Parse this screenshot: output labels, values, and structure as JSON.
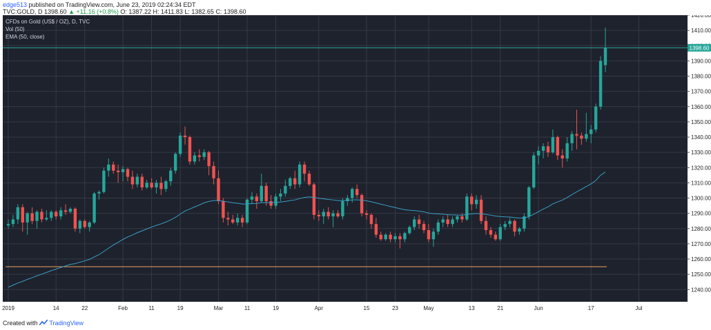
{
  "header": {
    "author": "edge513",
    "published": " published on TradingView.com, June 23, 2019 02:24:34 EDT",
    "symbol": "TVC:GOLD, D",
    "last": "1398.60",
    "change": "+11.16 (+0.8%)",
    "ohlc_o": "O: 1387.22",
    "ohlc_h": "H: 1411.83",
    "ohlc_l": "L: 1382.65",
    "ohlc_c": "C: 1398.60",
    "change_arrow": "▲"
  },
  "legend": {
    "title": "CFDs on Gold (US$ / OZ), D, TVC",
    "vol": "Vol (50)",
    "ema": "EMA (50, close)"
  },
  "footer": {
    "created_with": "Created with",
    "brand": "TradingView"
  },
  "colors": {
    "background": "#1e222d",
    "grid": "#363a45",
    "up": "#26a69a",
    "down": "#ef5350",
    "ema": "#3a9ec4",
    "hline_level": "#f0a35e",
    "last_line": "#26a69a",
    "axis_bg": "#ffffff"
  },
  "chart_data": {
    "type": "candlestick",
    "symbol": "CFDs on Gold (US$ / OZ), D, TVC",
    "ylim": [
      1232,
      1420
    ],
    "y_ticks": [
      1240,
      1250,
      1260,
      1270,
      1280,
      1290,
      1300,
      1310,
      1320,
      1330,
      1340,
      1350,
      1360,
      1370,
      1380,
      1390,
      1400,
      1410,
      1420
    ],
    "x_ticks": [
      {
        "label": "2019",
        "i": 0
      },
      {
        "label": "14",
        "i": 10
      },
      {
        "label": "22",
        "i": 16
      },
      {
        "label": "Feb",
        "i": 24
      },
      {
        "label": "11",
        "i": 30
      },
      {
        "label": "19",
        "i": 36
      },
      {
        "label": "Mar",
        "i": 44
      },
      {
        "label": "11",
        "i": 50
      },
      {
        "label": "19",
        "i": 56
      },
      {
        "label": "Apr",
        "i": 65
      },
      {
        "label": "15",
        "i": 75
      },
      {
        "label": "23",
        "i": 81
      },
      {
        "label": "May",
        "i": 88
      },
      {
        "label": "13",
        "i": 97
      },
      {
        "label": "21",
        "i": 103
      },
      {
        "label": "Jun",
        "i": 111
      },
      {
        "label": "17",
        "i": 122
      },
      {
        "label": "Jul",
        "i": 132
      }
    ],
    "last_price": 1398.6,
    "horizontal_level": 1255,
    "candles": [
      {
        "o": 1282,
        "h": 1286,
        "l": 1280,
        "c": 1283
      },
      {
        "o": 1283,
        "h": 1289,
        "l": 1281,
        "c": 1286
      },
      {
        "o": 1286,
        "h": 1296,
        "l": 1283,
        "c": 1294
      },
      {
        "o": 1294,
        "h": 1296,
        "l": 1278,
        "c": 1284
      },
      {
        "o": 1284,
        "h": 1291,
        "l": 1276,
        "c": 1290
      },
      {
        "o": 1290,
        "h": 1294,
        "l": 1283,
        "c": 1285
      },
      {
        "o": 1285,
        "h": 1292,
        "l": 1280,
        "c": 1291
      },
      {
        "o": 1291,
        "h": 1293,
        "l": 1284,
        "c": 1286
      },
      {
        "o": 1286,
        "h": 1292,
        "l": 1285,
        "c": 1287
      },
      {
        "o": 1287,
        "h": 1292,
        "l": 1285,
        "c": 1291
      },
      {
        "o": 1291,
        "h": 1292,
        "l": 1286,
        "c": 1288
      },
      {
        "o": 1288,
        "h": 1294,
        "l": 1286,
        "c": 1292
      },
      {
        "o": 1292,
        "h": 1296,
        "l": 1289,
        "c": 1291
      },
      {
        "o": 1291,
        "h": 1294,
        "l": 1290,
        "c": 1293
      },
      {
        "o": 1293,
        "h": 1294,
        "l": 1278,
        "c": 1280
      },
      {
        "o": 1280,
        "h": 1286,
        "l": 1277,
        "c": 1285
      },
      {
        "o": 1285,
        "h": 1286,
        "l": 1280,
        "c": 1281
      },
      {
        "o": 1281,
        "h": 1285,
        "l": 1278,
        "c": 1284
      },
      {
        "o": 1284,
        "h": 1304,
        "l": 1283,
        "c": 1303
      },
      {
        "o": 1303,
        "h": 1305,
        "l": 1299,
        "c": 1304
      },
      {
        "o": 1304,
        "h": 1320,
        "l": 1303,
        "c": 1318
      },
      {
        "o": 1318,
        "h": 1326,
        "l": 1314,
        "c": 1322
      },
      {
        "o": 1322,
        "h": 1324,
        "l": 1316,
        "c": 1318
      },
      {
        "o": 1318,
        "h": 1322,
        "l": 1310,
        "c": 1317
      },
      {
        "o": 1317,
        "h": 1321,
        "l": 1311,
        "c": 1319
      },
      {
        "o": 1319,
        "h": 1320,
        "l": 1311,
        "c": 1314
      },
      {
        "o": 1314,
        "h": 1318,
        "l": 1306,
        "c": 1309
      },
      {
        "o": 1309,
        "h": 1316,
        "l": 1307,
        "c": 1314
      },
      {
        "o": 1314,
        "h": 1316,
        "l": 1305,
        "c": 1307
      },
      {
        "o": 1307,
        "h": 1312,
        "l": 1306,
        "c": 1310
      },
      {
        "o": 1310,
        "h": 1313,
        "l": 1306,
        "c": 1307
      },
      {
        "o": 1307,
        "h": 1312,
        "l": 1303,
        "c": 1310
      },
      {
        "o": 1310,
        "h": 1314,
        "l": 1302,
        "c": 1306
      },
      {
        "o": 1306,
        "h": 1312,
        "l": 1304,
        "c": 1311
      },
      {
        "o": 1311,
        "h": 1320,
        "l": 1308,
        "c": 1318
      },
      {
        "o": 1318,
        "h": 1330,
        "l": 1316,
        "c": 1329
      },
      {
        "o": 1329,
        "h": 1343,
        "l": 1327,
        "c": 1341
      },
      {
        "o": 1341,
        "h": 1347,
        "l": 1335,
        "c": 1340
      },
      {
        "o": 1340,
        "h": 1341,
        "l": 1322,
        "c": 1324
      },
      {
        "o": 1324,
        "h": 1330,
        "l": 1322,
        "c": 1328
      },
      {
        "o": 1328,
        "h": 1332,
        "l": 1324,
        "c": 1327
      },
      {
        "o": 1327,
        "h": 1332,
        "l": 1325,
        "c": 1330
      },
      {
        "o": 1330,
        "h": 1331,
        "l": 1315,
        "c": 1321
      },
      {
        "o": 1321,
        "h": 1324,
        "l": 1309,
        "c": 1313
      },
      {
        "o": 1313,
        "h": 1318,
        "l": 1296,
        "c": 1298
      },
      {
        "o": 1298,
        "h": 1300,
        "l": 1284,
        "c": 1287
      },
      {
        "o": 1287,
        "h": 1291,
        "l": 1282,
        "c": 1286
      },
      {
        "o": 1286,
        "h": 1289,
        "l": 1283,
        "c": 1284
      },
      {
        "o": 1284,
        "h": 1290,
        "l": 1282,
        "c": 1287
      },
      {
        "o": 1287,
        "h": 1289,
        "l": 1281,
        "c": 1284
      },
      {
        "o": 1284,
        "h": 1300,
        "l": 1283,
        "c": 1299
      },
      {
        "o": 1299,
        "h": 1304,
        "l": 1296,
        "c": 1301
      },
      {
        "o": 1301,
        "h": 1303,
        "l": 1293,
        "c": 1298
      },
      {
        "o": 1298,
        "h": 1316,
        "l": 1297,
        "c": 1308
      },
      {
        "o": 1308,
        "h": 1310,
        "l": 1295,
        "c": 1298
      },
      {
        "o": 1298,
        "h": 1302,
        "l": 1293,
        "c": 1295
      },
      {
        "o": 1295,
        "h": 1303,
        "l": 1293,
        "c": 1301
      },
      {
        "o": 1301,
        "h": 1306,
        "l": 1298,
        "c": 1303
      },
      {
        "o": 1303,
        "h": 1312,
        "l": 1301,
        "c": 1308
      },
      {
        "o": 1308,
        "h": 1314,
        "l": 1306,
        "c": 1313
      },
      {
        "o": 1313,
        "h": 1318,
        "l": 1306,
        "c": 1309
      },
      {
        "o": 1309,
        "h": 1324,
        "l": 1307,
        "c": 1322
      },
      {
        "o": 1322,
        "h": 1324,
        "l": 1311,
        "c": 1316
      },
      {
        "o": 1316,
        "h": 1318,
        "l": 1308,
        "c": 1309
      },
      {
        "o": 1309,
        "h": 1310,
        "l": 1286,
        "c": 1289
      },
      {
        "o": 1289,
        "h": 1292,
        "l": 1285,
        "c": 1288
      },
      {
        "o": 1288,
        "h": 1293,
        "l": 1283,
        "c": 1291
      },
      {
        "o": 1291,
        "h": 1294,
        "l": 1286,
        "c": 1288
      },
      {
        "o": 1288,
        "h": 1292,
        "l": 1281,
        "c": 1290
      },
      {
        "o": 1290,
        "h": 1292,
        "l": 1287,
        "c": 1288
      },
      {
        "o": 1288,
        "h": 1300,
        "l": 1286,
        "c": 1298
      },
      {
        "o": 1298,
        "h": 1302,
        "l": 1295,
        "c": 1300
      },
      {
        "o": 1300,
        "h": 1307,
        "l": 1297,
        "c": 1306
      },
      {
        "o": 1306,
        "h": 1309,
        "l": 1300,
        "c": 1302
      },
      {
        "o": 1302,
        "h": 1303,
        "l": 1288,
        "c": 1290
      },
      {
        "o": 1290,
        "h": 1292,
        "l": 1286,
        "c": 1289
      },
      {
        "o": 1289,
        "h": 1290,
        "l": 1280,
        "c": 1283
      },
      {
        "o": 1283,
        "h": 1287,
        "l": 1274,
        "c": 1276
      },
      {
        "o": 1276,
        "h": 1278,
        "l": 1272,
        "c": 1273
      },
      {
        "o": 1273,
        "h": 1277,
        "l": 1272,
        "c": 1276
      },
      {
        "o": 1276,
        "h": 1278,
        "l": 1271,
        "c": 1273
      },
      {
        "o": 1273,
        "h": 1277,
        "l": 1271,
        "c": 1275
      },
      {
        "o": 1275,
        "h": 1277,
        "l": 1267,
        "c": 1273
      },
      {
        "o": 1273,
        "h": 1278,
        "l": 1271,
        "c": 1277
      },
      {
        "o": 1277,
        "h": 1282,
        "l": 1276,
        "c": 1281
      },
      {
        "o": 1281,
        "h": 1288,
        "l": 1279,
        "c": 1286
      },
      {
        "o": 1286,
        "h": 1289,
        "l": 1280,
        "c": 1283
      },
      {
        "o": 1283,
        "h": 1285,
        "l": 1277,
        "c": 1279
      },
      {
        "o": 1279,
        "h": 1283,
        "l": 1271,
        "c": 1273
      },
      {
        "o": 1273,
        "h": 1280,
        "l": 1268,
        "c": 1278
      },
      {
        "o": 1278,
        "h": 1286,
        "l": 1276,
        "c": 1284
      },
      {
        "o": 1284,
        "h": 1288,
        "l": 1281,
        "c": 1286
      },
      {
        "o": 1286,
        "h": 1289,
        "l": 1281,
        "c": 1283
      },
      {
        "o": 1283,
        "h": 1288,
        "l": 1281,
        "c": 1286
      },
      {
        "o": 1286,
        "h": 1289,
        "l": 1284,
        "c": 1288
      },
      {
        "o": 1288,
        "h": 1290,
        "l": 1284,
        "c": 1286
      },
      {
        "o": 1286,
        "h": 1303,
        "l": 1285,
        "c": 1301
      },
      {
        "o": 1301,
        "h": 1303,
        "l": 1292,
        "c": 1296
      },
      {
        "o": 1296,
        "h": 1302,
        "l": 1293,
        "c": 1299
      },
      {
        "o": 1299,
        "h": 1302,
        "l": 1283,
        "c": 1285
      },
      {
        "o": 1285,
        "h": 1288,
        "l": 1276,
        "c": 1279
      },
      {
        "o": 1279,
        "h": 1281,
        "l": 1274,
        "c": 1276
      },
      {
        "o": 1276,
        "h": 1278,
        "l": 1272,
        "c": 1273
      },
      {
        "o": 1273,
        "h": 1283,
        "l": 1272,
        "c": 1281
      },
      {
        "o": 1281,
        "h": 1285,
        "l": 1279,
        "c": 1283
      },
      {
        "o": 1283,
        "h": 1287,
        "l": 1281,
        "c": 1285
      },
      {
        "o": 1285,
        "h": 1286,
        "l": 1275,
        "c": 1278
      },
      {
        "o": 1278,
        "h": 1281,
        "l": 1276,
        "c": 1280
      },
      {
        "o": 1280,
        "h": 1290,
        "l": 1278,
        "c": 1288
      },
      {
        "o": 1288,
        "h": 1308,
        "l": 1286,
        "c": 1307
      },
      {
        "o": 1307,
        "h": 1330,
        "l": 1306,
        "c": 1328
      },
      {
        "o": 1328,
        "h": 1334,
        "l": 1322,
        "c": 1331
      },
      {
        "o": 1331,
        "h": 1336,
        "l": 1326,
        "c": 1334
      },
      {
        "o": 1334,
        "h": 1337,
        "l": 1327,
        "c": 1330
      },
      {
        "o": 1330,
        "h": 1345,
        "l": 1329,
        "c": 1340
      },
      {
        "o": 1340,
        "h": 1341,
        "l": 1325,
        "c": 1328
      },
      {
        "o": 1328,
        "h": 1332,
        "l": 1320,
        "c": 1326
      },
      {
        "o": 1326,
        "h": 1340,
        "l": 1324,
        "c": 1336
      },
      {
        "o": 1336,
        "h": 1344,
        "l": 1331,
        "c": 1342
      },
      {
        "o": 1342,
        "h": 1358,
        "l": 1332,
        "c": 1341
      },
      {
        "o": 1341,
        "h": 1343,
        "l": 1335,
        "c": 1339
      },
      {
        "o": 1339,
        "h": 1356,
        "l": 1337,
        "c": 1342
      },
      {
        "o": 1342,
        "h": 1348,
        "l": 1336,
        "c": 1345
      },
      {
        "o": 1345,
        "h": 1362,
        "l": 1343,
        "c": 1360
      },
      {
        "o": 1360,
        "h": 1393,
        "l": 1358,
        "c": 1390
      },
      {
        "o": 1387.22,
        "h": 1411.83,
        "l": 1382.65,
        "c": 1398.6
      }
    ],
    "ema": [
      1241.5,
      1242.9,
      1244.3,
      1245.4,
      1246.7,
      1247.8,
      1249.0,
      1250.1,
      1251.2,
      1252.4,
      1253.4,
      1254.5,
      1255.5,
      1256.5,
      1257.0,
      1258.0,
      1258.8,
      1259.8,
      1261.4,
      1262.9,
      1265.0,
      1267.2,
      1269.2,
      1271.0,
      1272.9,
      1274.5,
      1275.8,
      1277.3,
      1278.5,
      1279.8,
      1281.0,
      1282.1,
      1283.1,
      1284.3,
      1285.7,
      1287.4,
      1289.5,
      1291.5,
      1292.8,
      1294.2,
      1295.5,
      1296.9,
      1297.8,
      1298.4,
      1298.4,
      1298.0,
      1297.5,
      1296.9,
      1296.6,
      1296.1,
      1296.2,
      1296.4,
      1296.5,
      1297.0,
      1297.1,
      1297.0,
      1297.2,
      1297.4,
      1297.8,
      1298.4,
      1298.8,
      1299.7,
      1300.4,
      1300.8,
      1300.4,
      1299.9,
      1299.5,
      1299.1,
      1298.8,
      1298.4,
      1298.4,
      1298.5,
      1298.8,
      1298.9,
      1298.6,
      1298.2,
      1297.6,
      1296.8,
      1296.0,
      1295.3,
      1294.5,
      1293.8,
      1293.0,
      1292.4,
      1292.0,
      1291.8,
      1291.5,
      1291.0,
      1290.2,
      1289.8,
      1289.6,
      1289.4,
      1289.1,
      1289.0,
      1288.9,
      1288.8,
      1289.3,
      1289.6,
      1289.9,
      1289.7,
      1289.3,
      1288.8,
      1288.2,
      1287.9,
      1287.7,
      1287.6,
      1287.2,
      1286.9,
      1287.0,
      1287.8,
      1289.4,
      1291.1,
      1292.8,
      1294.3,
      1296.2,
      1297.5,
      1298.7,
      1300.4,
      1302.3,
      1304.1,
      1305.8,
      1307.6,
      1309.3,
      1311.6,
      1315.0,
      1317.1
    ]
  }
}
